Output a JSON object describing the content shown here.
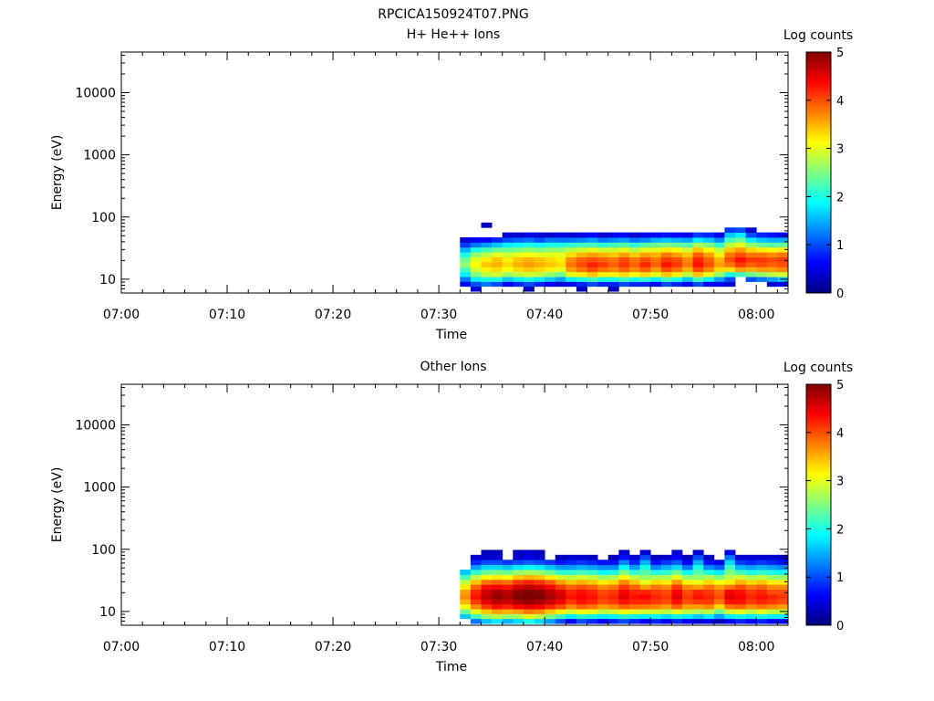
{
  "page_title": "RPCICA150924T07.PNG",
  "colorbar_stops": [
    "#00007f",
    "#0000ff",
    "#007fff",
    "#00ffff",
    "#7fff7f",
    "#ffff00",
    "#ff7f00",
    "#ff0000",
    "#7f0000"
  ],
  "chart_data": [
    {
      "type": "heatmap",
      "title": "H+ He++ Ions",
      "xlabel": "Time",
      "ylabel": "Energy (eV)",
      "y_scale": "log",
      "xlim": [
        "07:00",
        "08:03"
      ],
      "ylim": [
        6,
        45000
      ],
      "x_ticks": [
        "07:00",
        "07:10",
        "07:20",
        "07:30",
        "07:40",
        "07:50",
        "08:00"
      ],
      "y_ticks": [
        "10",
        "100",
        "1000",
        "10000"
      ],
      "colorbar": {
        "label": "Log counts",
        "range": [
          0,
          5
        ],
        "ticks": [
          "0",
          "1",
          "2",
          "3",
          "4",
          "5"
        ]
      },
      "data_time_range": [
        "07:32",
        "08:03"
      ],
      "energy_levels_eV": [
        7.0,
        8.4,
        10.0,
        12.0,
        14.4,
        17.3,
        20.7,
        24.9,
        29.9,
        35.8,
        43.0,
        51.6,
        61.9,
        74.3,
        89.2
      ],
      "values": [
        [
          0,
          0.6,
          1.2,
          1.8,
          2.2,
          2.6,
          2.4,
          2.0,
          1.5,
          0.9,
          0.4,
          0,
          0,
          0,
          0
        ],
        [
          0.4,
          1.0,
          1.8,
          2.5,
          2.9,
          3.1,
          3.0,
          2.6,
          2.0,
          1.2,
          0.6,
          0,
          0,
          0,
          0
        ],
        [
          0,
          1.2,
          2.0,
          2.8,
          3.2,
          3.4,
          3.2,
          2.8,
          2.2,
          1.4,
          0.6,
          0,
          0,
          0.3,
          0
        ],
        [
          0,
          1.0,
          2.0,
          2.9,
          3.3,
          3.5,
          3.4,
          3.0,
          2.4,
          1.6,
          0.8,
          0,
          0,
          0,
          0
        ],
        [
          0,
          0.6,
          1.6,
          2.6,
          3.1,
          3.3,
          3.2,
          2.9,
          2.4,
          1.8,
          1.0,
          0.4,
          0,
          0,
          0
        ],
        [
          0,
          0.8,
          1.8,
          2.8,
          3.3,
          3.5,
          3.4,
          3.0,
          2.5,
          1.9,
          1.1,
          0.4,
          0,
          0,
          0
        ],
        [
          0.3,
          1.0,
          2.0,
          2.9,
          3.4,
          3.6,
          3.5,
          3.1,
          2.6,
          2.0,
          1.2,
          0.5,
          0,
          0,
          0
        ],
        [
          0,
          0.8,
          1.8,
          2.8,
          3.3,
          3.5,
          3.4,
          3.0,
          2.5,
          1.9,
          1.0,
          0.4,
          0,
          0,
          0
        ],
        [
          0,
          0.6,
          1.6,
          2.6,
          3.2,
          3.4,
          3.3,
          3.0,
          2.6,
          2.0,
          1.2,
          0.4,
          0,
          0,
          0
        ],
        [
          0,
          0.4,
          1.4,
          2.4,
          3.0,
          3.3,
          3.2,
          3.0,
          2.6,
          2.0,
          1.2,
          0.5,
          0,
          0,
          0
        ],
        [
          0,
          0.6,
          1.8,
          3.0,
          3.6,
          3.8,
          3.7,
          3.3,
          2.8,
          2.1,
          1.2,
          0.4,
          0,
          0,
          0
        ],
        [
          0.3,
          0.8,
          2.0,
          3.2,
          3.8,
          4.0,
          3.9,
          3.5,
          2.9,
          2.2,
          1.3,
          0.5,
          0,
          0,
          0
        ],
        [
          0,
          1.0,
          2.2,
          3.4,
          4.0,
          4.2,
          4.0,
          3.6,
          3.0,
          2.2,
          1.4,
          0.6,
          0,
          0,
          0
        ],
        [
          0,
          0.8,
          2.0,
          3.2,
          3.8,
          4.1,
          3.9,
          3.5,
          2.9,
          2.1,
          1.2,
          0.4,
          0,
          0,
          0
        ],
        [
          0.3,
          0.8,
          2.0,
          3.2,
          3.7,
          3.9,
          3.8,
          3.4,
          2.9,
          2.2,
          1.3,
          0.5,
          0,
          0,
          0
        ],
        [
          0,
          1.0,
          2.2,
          3.3,
          3.9,
          4.1,
          4.0,
          3.6,
          3.0,
          2.3,
          1.4,
          0.6,
          0,
          0,
          0
        ],
        [
          0,
          0.8,
          2.0,
          3.1,
          3.7,
          3.9,
          3.8,
          3.4,
          2.8,
          2.1,
          1.2,
          0.4,
          0,
          0,
          0
        ],
        [
          0,
          0.8,
          2.1,
          3.3,
          3.9,
          4.2,
          4.0,
          3.6,
          3.0,
          2.3,
          1.3,
          0.5,
          0,
          0,
          0
        ],
        [
          0,
          0.6,
          1.8,
          3.0,
          3.6,
          3.9,
          3.8,
          3.5,
          3.0,
          2.4,
          1.5,
          0.6,
          0,
          0,
          0
        ],
        [
          0,
          1.0,
          2.2,
          3.4,
          4.0,
          4.3,
          4.1,
          3.8,
          3.2,
          2.5,
          1.6,
          0.7,
          0,
          0,
          0
        ],
        [
          0,
          0.8,
          2.0,
          3.2,
          3.8,
          4.1,
          4.0,
          3.6,
          3.1,
          2.4,
          1.5,
          0.6,
          0,
          0,
          0
        ],
        [
          0,
          0.6,
          1.6,
          2.8,
          3.5,
          3.8,
          3.7,
          3.4,
          2.9,
          2.3,
          1.4,
          0.5,
          0,
          0,
          0
        ],
        [
          0,
          1.0,
          2.2,
          3.4,
          4.0,
          4.3,
          4.2,
          3.9,
          3.4,
          2.7,
          1.8,
          0.9,
          0,
          0,
          0
        ],
        [
          0,
          0.6,
          1.8,
          3.0,
          3.7,
          4.0,
          3.9,
          3.6,
          3.1,
          2.5,
          1.6,
          0.8,
          0,
          0,
          0
        ],
        [
          0,
          0.6,
          1.4,
          2.6,
          3.3,
          3.6,
          3.5,
          3.2,
          2.8,
          2.1,
          1.3,
          0.5,
          0,
          0,
          0
        ],
        [
          0,
          0.4,
          1.0,
          2.0,
          3.3,
          3.8,
          4.0,
          3.8,
          3.4,
          2.8,
          2.2,
          1.6,
          0.9,
          0,
          0
        ],
        [
          0,
          0,
          0,
          2.2,
          3.6,
          4.1,
          4.3,
          4.0,
          3.6,
          3.0,
          2.4,
          1.8,
          1.0,
          0,
          0
        ],
        [
          0,
          0,
          1.0,
          2.4,
          3.5,
          3.9,
          4.1,
          3.8,
          3.3,
          2.6,
          1.8,
          1.0,
          0.4,
          0,
          0
        ],
        [
          0,
          0,
          1.2,
          2.6,
          3.6,
          4.0,
          4.1,
          3.8,
          3.2,
          2.4,
          1.6,
          0.8,
          0,
          0,
          0
        ],
        [
          0,
          0.4,
          1.4,
          2.8,
          3.6,
          3.9,
          4.0,
          3.7,
          3.1,
          2.3,
          1.5,
          0.7,
          0,
          0,
          0
        ],
        [
          0,
          0.6,
          1.6,
          2.9,
          3.7,
          4.0,
          4.1,
          3.8,
          3.2,
          2.4,
          1.5,
          0.6,
          0,
          0,
          0
        ]
      ]
    },
    {
      "type": "heatmap",
      "title": "Other Ions",
      "xlabel": "Time",
      "ylabel": "Energy (eV)",
      "y_scale": "log",
      "xlim": [
        "07:00",
        "08:03"
      ],
      "ylim": [
        6,
        45000
      ],
      "x_ticks": [
        "07:00",
        "07:10",
        "07:20",
        "07:30",
        "07:40",
        "07:50",
        "08:00"
      ],
      "y_ticks": [
        "10",
        "100",
        "1000",
        "10000"
      ],
      "colorbar": {
        "label": "Log counts",
        "range": [
          0,
          5
        ],
        "ticks": [
          "0",
          "1",
          "2",
          "3",
          "4",
          "5"
        ]
      },
      "data_time_range": [
        "07:32",
        "08:03"
      ],
      "energy_levels_eV": [
        7.0,
        8.4,
        10.0,
        12.0,
        14.4,
        17.3,
        20.7,
        24.9,
        29.9,
        35.8,
        43.0,
        51.6,
        61.9,
        74.3,
        89.2
      ],
      "values": [
        [
          0,
          1.6,
          2.4,
          3.1,
          3.5,
          3.7,
          3.6,
          3.2,
          2.8,
          2.2,
          1.6,
          0,
          0,
          0,
          0
        ],
        [
          1.2,
          2.2,
          3.0,
          3.7,
          4.1,
          4.3,
          4.2,
          3.9,
          3.4,
          2.8,
          2.1,
          1.4,
          0.8,
          0.4,
          0
        ],
        [
          1.6,
          2.6,
          3.4,
          4.1,
          4.5,
          4.7,
          4.6,
          4.3,
          3.8,
          3.1,
          2.4,
          1.7,
          1.0,
          0.4,
          0.3
        ],
        [
          1.8,
          2.8,
          3.6,
          4.3,
          4.7,
          4.9,
          4.8,
          4.4,
          3.9,
          3.2,
          2.5,
          1.7,
          1.0,
          0.4,
          0.3
        ],
        [
          1.5,
          2.6,
          3.5,
          4.2,
          4.6,
          4.8,
          4.7,
          4.3,
          3.8,
          3.1,
          2.4,
          1.6,
          0.9,
          0,
          0
        ],
        [
          1.7,
          2.7,
          3.6,
          4.4,
          4.8,
          5.0,
          4.9,
          4.6,
          4.1,
          3.4,
          2.6,
          1.8,
          1.0,
          0.4,
          0.3
        ],
        [
          2.0,
          3.0,
          3.8,
          4.5,
          4.9,
          5.0,
          5.0,
          4.7,
          4.2,
          3.5,
          2.7,
          1.9,
          1.1,
          0.5,
          0.4
        ],
        [
          1.7,
          2.8,
          3.7,
          4.4,
          4.8,
          5.0,
          4.9,
          4.6,
          4.1,
          3.4,
          2.6,
          1.8,
          1.0,
          0.4,
          0.3
        ],
        [
          1.4,
          2.5,
          3.4,
          4.2,
          4.6,
          4.8,
          4.7,
          4.4,
          3.9,
          3.2,
          2.4,
          1.6,
          0.9,
          0,
          0
        ],
        [
          1.0,
          2.2,
          3.2,
          4.0,
          4.4,
          4.6,
          4.5,
          4.1,
          3.6,
          2.9,
          2.1,
          1.4,
          0.7,
          0.3,
          0
        ],
        [
          0.6,
          1.8,
          2.9,
          3.7,
          4.1,
          4.3,
          4.2,
          3.9,
          3.4,
          2.8,
          2.1,
          1.4,
          0.8,
          0.4,
          0
        ],
        [
          1.0,
          2.1,
          3.1,
          3.9,
          4.3,
          4.4,
          4.3,
          4.0,
          3.5,
          2.9,
          2.2,
          1.5,
          0.9,
          0.4,
          0
        ],
        [
          0.8,
          2.0,
          3.0,
          3.8,
          4.2,
          4.3,
          4.2,
          3.9,
          3.4,
          2.8,
          2.1,
          1.4,
          0.8,
          0.3,
          0
        ],
        [
          0.6,
          1.8,
          2.8,
          3.6,
          4.0,
          4.1,
          4.0,
          3.7,
          3.2,
          2.6,
          1.9,
          1.3,
          0.7,
          0,
          0
        ],
        [
          0.8,
          1.9,
          2.9,
          3.7,
          4.1,
          4.2,
          4.1,
          3.8,
          3.3,
          2.7,
          2.0,
          1.3,
          0.7,
          0.3,
          0
        ],
        [
          1.0,
          2.1,
          3.1,
          3.9,
          4.3,
          4.5,
          4.4,
          4.1,
          3.7,
          3.1,
          2.5,
          1.9,
          1.3,
          0.7,
          0.4
        ],
        [
          0.8,
          2.0,
          3.0,
          3.8,
          4.2,
          4.3,
          4.2,
          3.9,
          3.4,
          2.8,
          2.1,
          1.4,
          0.8,
          0.4,
          0
        ],
        [
          0.6,
          1.8,
          2.9,
          3.8,
          4.2,
          4.4,
          4.2,
          3.6,
          3.0,
          2.6,
          2.3,
          2.0,
          1.5,
          1.0,
          0.4
        ],
        [
          0.8,
          1.9,
          2.9,
          3.7,
          4.1,
          4.2,
          4.1,
          3.8,
          3.3,
          2.7,
          2.0,
          1.3,
          0.7,
          0.3,
          0
        ],
        [
          0.6,
          1.7,
          2.8,
          3.6,
          4.0,
          4.1,
          4.0,
          3.7,
          3.2,
          2.7,
          2.1,
          1.5,
          0.9,
          0.4,
          0
        ],
        [
          0.8,
          2.0,
          3.0,
          3.9,
          4.3,
          4.5,
          4.4,
          4.1,
          3.6,
          3.0,
          2.4,
          1.7,
          1.1,
          0.6,
          0.4
        ],
        [
          0.6,
          1.8,
          2.8,
          3.6,
          4.0,
          4.1,
          4.0,
          3.7,
          3.2,
          2.6,
          1.9,
          1.2,
          0.6,
          0.3,
          0
        ],
        [
          0.4,
          1.6,
          2.7,
          3.6,
          4.1,
          4.3,
          4.2,
          3.6,
          3.0,
          2.6,
          2.3,
          2.0,
          1.5,
          1.0,
          0.4
        ],
        [
          0.6,
          1.8,
          2.8,
          3.7,
          4.1,
          4.2,
          4.1,
          3.8,
          3.3,
          2.7,
          2.0,
          1.3,
          0.7,
          0.3,
          0
        ],
        [
          0.3,
          1.4,
          2.4,
          3.3,
          3.8,
          4.0,
          3.9,
          3.6,
          3.1,
          2.5,
          1.8,
          1.1,
          0.5,
          0,
          0
        ],
        [
          0.6,
          1.8,
          2.9,
          3.8,
          4.3,
          4.5,
          4.4,
          3.8,
          3.2,
          2.8,
          2.5,
          2.2,
          1.7,
          1.2,
          0.5
        ],
        [
          0.8,
          2.0,
          3.0,
          3.9,
          4.3,
          4.4,
          4.3,
          4.0,
          3.5,
          2.9,
          2.2,
          1.5,
          0.9,
          0.4,
          0
        ],
        [
          0.6,
          1.8,
          2.8,
          3.7,
          4.1,
          4.2,
          4.1,
          3.8,
          3.3,
          2.7,
          2.0,
          1.4,
          0.8,
          0.4,
          0
        ],
        [
          0.8,
          2.0,
          3.0,
          3.8,
          4.2,
          4.3,
          4.2,
          3.9,
          3.4,
          2.8,
          2.1,
          1.5,
          0.9,
          0.4,
          0
        ],
        [
          0.6,
          1.8,
          2.8,
          3.7,
          4.1,
          4.2,
          4.0,
          3.7,
          3.2,
          2.6,
          2.0,
          1.4,
          0.8,
          0.4,
          0
        ],
        [
          0.6,
          1.8,
          2.8,
          3.6,
          4.0,
          4.1,
          4.0,
          3.7,
          3.2,
          2.6,
          1.9,
          1.3,
          0.7,
          0.3,
          0
        ]
      ]
    }
  ]
}
